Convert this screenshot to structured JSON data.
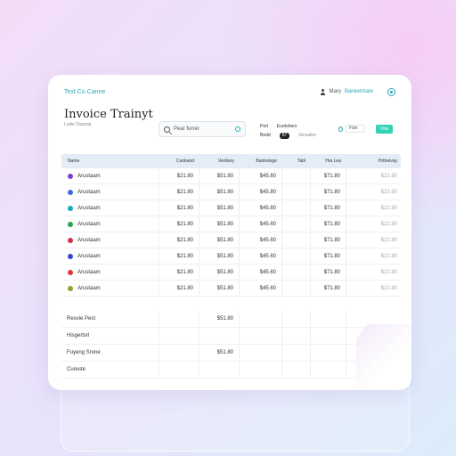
{
  "header": {
    "brand": "Text Co Canne",
    "user_label": "Mary",
    "user_link": "Banketmate"
  },
  "page": {
    "title": "Invoice Trainyt",
    "subtitle": "Lnsle Dasmai"
  },
  "search": {
    "value": "Pear furrer"
  },
  "filters": {
    "row1": [
      "Ped",
      "Euotshers"
    ],
    "row2_left": "Bedd",
    "row2_pill": "87",
    "row2_right": "Venudeo"
  },
  "dropdown": {
    "value": "Fide",
    "button": "Vide"
  },
  "table": {
    "columns": [
      "Name",
      "Cunkand",
      "Verklary",
      "Bankologe",
      "Tabl",
      "Hra Lea",
      "Hrtheivay"
    ],
    "rows": [
      {
        "name": "Arustaam",
        "color": "#7a3fd0",
        "values": [
          "$21.80",
          "$51.80",
          "$45.60",
          "",
          "$71.80",
          "$21.80"
        ]
      },
      {
        "name": "Arustaam",
        "color": "#3b6bdc",
        "values": [
          "$21.80",
          "$51.80",
          "$45.80",
          "",
          "$71.80",
          "$21.80"
        ]
      },
      {
        "name": "Arustaam",
        "color": "#1aa7c4",
        "values": [
          "$21.80",
          "$51.80",
          "$45.60",
          "",
          "$71.80",
          "$21.80"
        ]
      },
      {
        "name": "Arustaam",
        "color": "#2ba24c",
        "values": [
          "$21.80",
          "$51.80",
          "$45.60",
          "",
          "$71.80",
          "$21.80"
        ]
      },
      {
        "name": "Arustaam",
        "color": "#d0304e",
        "values": [
          "$21.80",
          "$51.80",
          "$45.60",
          "",
          "$71.80",
          "$21.80"
        ]
      },
      {
        "name": "Arustaam",
        "color": "#3a46c8",
        "values": [
          "$21.80",
          "$51.80",
          "$45.60",
          "",
          "$71.80",
          "$21.80"
        ]
      },
      {
        "name": "Arustaam",
        "color": "#e0383a",
        "values": [
          "$21.80",
          "$51.80",
          "$45.60",
          "",
          "$71.80",
          "$21.80"
        ]
      },
      {
        "name": "Arustaam",
        "color": "#8aa52c",
        "values": [
          "$21.80",
          "$51.80",
          "$45.60",
          "",
          "$71.80",
          "$21.80"
        ]
      }
    ],
    "summary": [
      {
        "label": "Resvie Pest",
        "value": "$51.80"
      },
      {
        "label": "Hisgertsrl",
        "value": ""
      },
      {
        "label": "Fuyeng Srone",
        "value": "$51.80"
      },
      {
        "label": "Cureste",
        "value": ""
      }
    ]
  }
}
